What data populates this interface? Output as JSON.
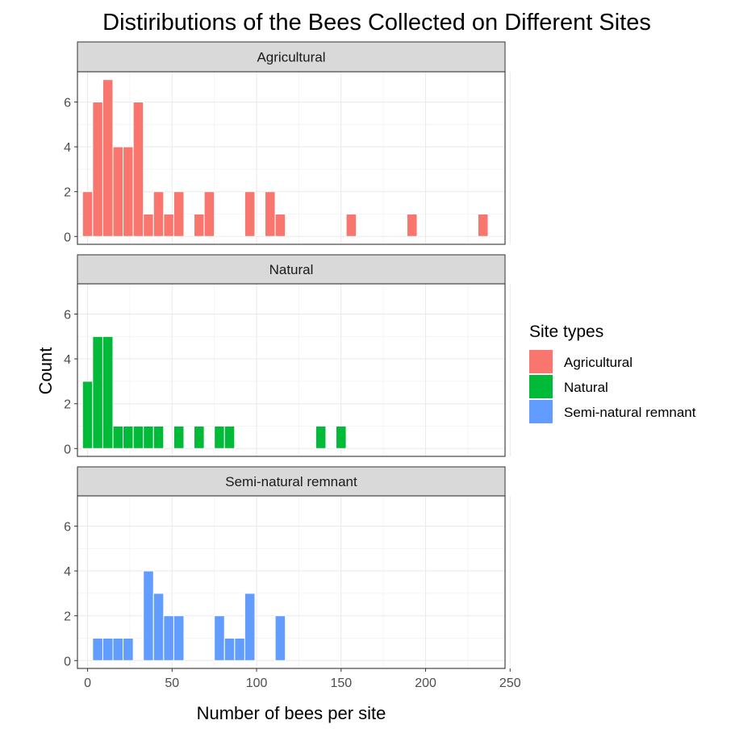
{
  "chart_data": {
    "type": "bar",
    "chart_kind": "faceted-histogram",
    "title": "Distiributions of the Bees Collected on Different Sites",
    "xlabel": "Number of bees per site",
    "ylabel": "Count",
    "xlim": [
      -6,
      247
    ],
    "ylim": [
      -0.35,
      7.35
    ],
    "x_ticks": [
      0,
      50,
      100,
      150,
      200,
      250
    ],
    "y_ticks": [
      0,
      2,
      4,
      6
    ],
    "bin_width": 6,
    "grid": true,
    "legend": {
      "title": "Site types",
      "position": "right",
      "entries": [
        "Agricultural",
        "Natural",
        "Semi-natural remnant"
      ]
    },
    "series": [
      {
        "name": "Agricultural",
        "color": "#F8766D",
        "x": [
          0,
          6,
          12,
          18,
          24,
          30,
          36,
          42,
          48,
          54,
          66,
          72,
          96,
          108,
          114,
          156,
          192,
          234
        ],
        "values": [
          2,
          6,
          7,
          4,
          4,
          6,
          1,
          2,
          1,
          2,
          1,
          2,
          2,
          2,
          1,
          1,
          1,
          1
        ]
      },
      {
        "name": "Natural",
        "color": "#00BA38",
        "x": [
          0,
          6,
          12,
          18,
          24,
          30,
          36,
          42,
          54,
          66,
          78,
          84,
          138,
          150
        ],
        "values": [
          3,
          5,
          5,
          1,
          1,
          1,
          1,
          1,
          1,
          1,
          1,
          1,
          1,
          1
        ]
      },
      {
        "name": "Semi-natural remnant",
        "color": "#619CFF",
        "x": [
          6,
          12,
          18,
          24,
          36,
          42,
          48,
          54,
          78,
          84,
          90,
          96,
          114
        ],
        "values": [
          1,
          1,
          1,
          1,
          4,
          3,
          2,
          2,
          2,
          1,
          1,
          3,
          2
        ]
      }
    ]
  }
}
